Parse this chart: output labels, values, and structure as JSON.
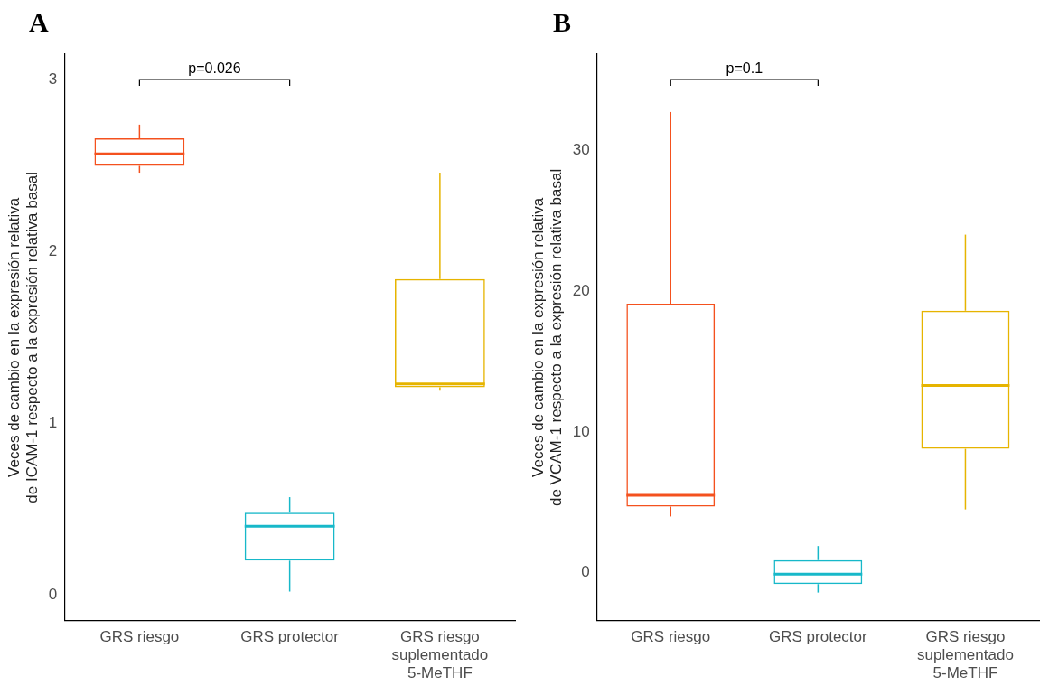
{
  "chart_data": [
    {
      "type": "box",
      "title": "A",
      "ylabel": "Veces de cambio en la expresión relativa\nde ICAM-1 respecto a la expresión relativa basal",
      "categories": [
        "GRS riesgo",
        "GRS protector",
        "GRS riesgo\nsuplementado\n5-MeTHF"
      ],
      "colors": [
        "#f4511e",
        "#17b8c9",
        "#e6b400"
      ],
      "boxes": [
        {
          "low": 2.46,
          "q1": 2.5,
          "median": 2.57,
          "q3": 2.66,
          "high": 2.74
        },
        {
          "low": 0.02,
          "q1": 0.2,
          "median": 0.4,
          "q3": 0.48,
          "high": 0.57
        },
        {
          "low": 1.19,
          "q1": 1.21,
          "median": 1.23,
          "q3": 1.84,
          "high": 2.46
        }
      ],
      "ylim": [
        -0.15,
        3.15
      ],
      "yticks": [
        0,
        1,
        2,
        3
      ],
      "annotations": [
        "p=0.026"
      ]
    },
    {
      "type": "box",
      "title": "B",
      "ylabel": "Veces de cambio en la expresión relativa\nde VCAM-1 respecto a la expresión relativa basal",
      "categories": [
        "GRS riesgo",
        "GRS protector",
        "GRS riesgo\nsuplementado\n5-MeTHF"
      ],
      "colors": [
        "#f4511e",
        "#17b8c9",
        "#e6b400"
      ],
      "boxes": [
        {
          "low": 4.0,
          "q1": 4.7,
          "median": 5.5,
          "q3": 19.1,
          "high": 32.7
        },
        {
          "low": -1.4,
          "q1": -0.8,
          "median": -0.1,
          "q3": 0.9,
          "high": 1.9
        },
        {
          "low": 4.5,
          "q1": 8.8,
          "median": 13.3,
          "q3": 18.6,
          "high": 24.0
        }
      ],
      "ylim": [
        -3.4,
        36.8
      ],
      "yticks": [
        0,
        10,
        20,
        30
      ],
      "annotations": [
        "p=0.1"
      ]
    }
  ]
}
